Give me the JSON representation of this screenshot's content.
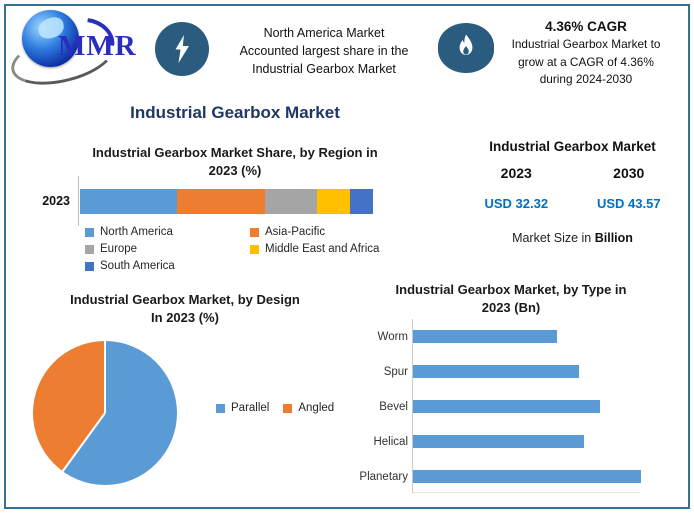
{
  "colors": {
    "accent_navy": "#1F3864",
    "value_blue": "#0070C0",
    "icon_circle": "#2A5C80",
    "frame_border": "#35708E",
    "series_blue": "#5B9BD5",
    "series_orange": "#ED7D31",
    "series_gray": "#A5A5A5",
    "series_yellow": "#FFC000",
    "series_dark_blue": "#4472C4"
  },
  "header": {
    "logo_text": "MMR",
    "fact1": {
      "icon": "lightning-icon",
      "text": "North America Market\nAccounted largest share in the\nIndustrial Gearbox Market"
    },
    "fact2": {
      "icon": "flame-icon",
      "title": "4.36% CAGR",
      "text": "Industrial Gearbox Market to\ngrow at a CAGR of 4.36%\nduring 2024-2030"
    }
  },
  "main_title": "Industrial Gearbox Market",
  "market_size_panel": {
    "title": "Industrial Gearbox Market",
    "year_left": "2023",
    "year_right": "2030",
    "value_left": "USD 32.32",
    "value_right": "USD 43.57",
    "footnote_regular": "Market Size in ",
    "footnote_bold": "Billion"
  },
  "chart_data": [
    {
      "type": "bar",
      "subtype": "stacked-horizontal",
      "title": "Industrial Gearbox Market Share, by Region in\n2023 (%)",
      "categories": [
        "2023"
      ],
      "series": [
        {
          "name": "North America",
          "color": "#5B9BD5",
          "values": [
            33
          ]
        },
        {
          "name": "Asia-Pacific",
          "color": "#ED7D31",
          "values": [
            30
          ]
        },
        {
          "name": "Europe",
          "color": "#A5A5A5",
          "values": [
            18
          ]
        },
        {
          "name": "Middle East and Africa",
          "color": "#FFC000",
          "values": [
            11
          ]
        },
        {
          "name": "South America",
          "color": "#4472C4",
          "values": [
            8
          ]
        }
      ],
      "xlim": [
        0,
        100
      ],
      "legend_position": "bottom",
      "data_labels": false,
      "values_estimated_from_segment_widths": true
    },
    {
      "type": "pie",
      "title": "Industrial Gearbox Market, by Design\nIn 2023 (%)",
      "labels": [
        "Parallel",
        "Angled"
      ],
      "values": [
        60,
        40
      ],
      "colors": [
        "#5B9BD5",
        "#ED7D31"
      ],
      "start_angle_deg": 0,
      "direction": "clockwise",
      "legend_position": "right",
      "data_labels": false,
      "values_estimated_from_slice_angles": true
    },
    {
      "type": "bar",
      "subtype": "horizontal",
      "title": "Industrial Gearbox Market, by Type in\n2023 (Bn)",
      "categories": [
        "Worm",
        "Spur",
        "Bevel",
        "Helical",
        "Planetary"
      ],
      "values": [
        63,
        73,
        82,
        75,
        100
      ],
      "bar_color": "#5B9BD5",
      "legend_position": "none",
      "data_labels": false,
      "value_axis_unlabeled": true,
      "values_scale": "percent of longest bar"
    }
  ]
}
